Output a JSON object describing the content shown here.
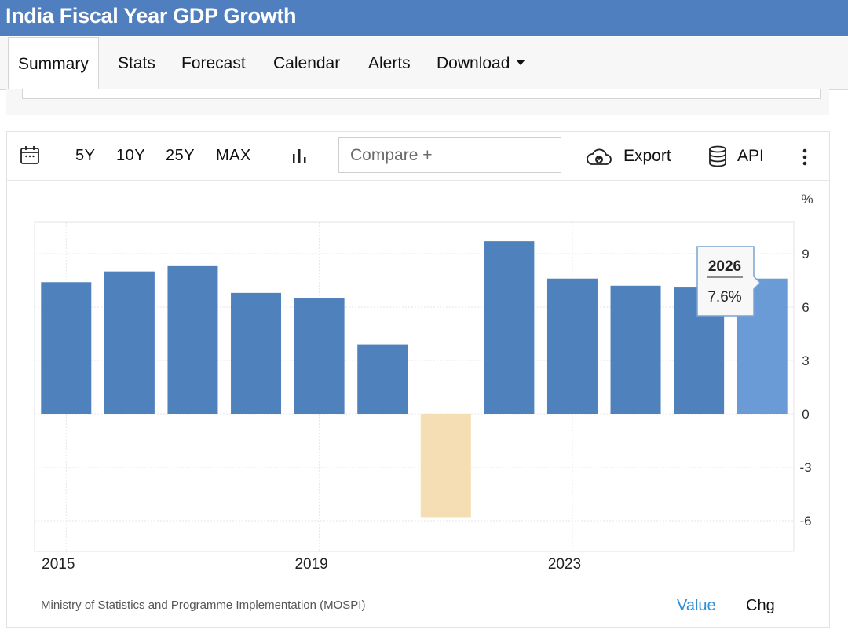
{
  "page": {
    "title": "India Fiscal Year GDP Growth"
  },
  "tabs": [
    {
      "label": "Summary",
      "active": true
    },
    {
      "label": "Stats"
    },
    {
      "label": "Forecast"
    },
    {
      "label": "Calendar"
    },
    {
      "label": "Alerts"
    },
    {
      "label": "Download"
    }
  ],
  "toolbar": {
    "calendar_icon": "calendar-icon",
    "ranges": [
      "5Y",
      "10Y",
      "25Y",
      "MAX"
    ],
    "chart_type_icon": "bar-chart-icon",
    "compare_placeholder": "Compare +",
    "export_label": "Export",
    "export_icon": "cloud-download-icon",
    "api_label": "API",
    "api_icon": "database-icon",
    "more_icon": "vertical-dots-icon"
  },
  "chart_data": {
    "type": "bar",
    "title": "India Fiscal Year GDP Growth",
    "unit_label": "%",
    "categories": [
      "2015",
      "2016",
      "2017",
      "2018",
      "2019",
      "2020",
      "2021",
      "2022",
      "2023",
      "2024",
      "2025",
      "2026"
    ],
    "values": [
      7.4,
      8.0,
      8.3,
      6.8,
      6.5,
      3.9,
      -5.8,
      9.7,
      7.6,
      7.2,
      7.1,
      7.6
    ],
    "x_tick_labels": [
      "2015",
      "2019",
      "2023"
    ],
    "y_ticks": [
      9,
      6,
      3,
      0,
      -3,
      -6
    ],
    "ylim": [
      -7.5,
      11
    ],
    "colors": {
      "bar": "#4f81bd",
      "negative": "#f5deb3",
      "forecast": "#6a9bd6"
    },
    "tooltip": {
      "label": "2026",
      "value": "7.6%"
    }
  },
  "footer": {
    "source": "Ministry of Statistics and Programme Implementation (MOSPI)",
    "value_label": "Value",
    "chg_label": "Chg"
  }
}
